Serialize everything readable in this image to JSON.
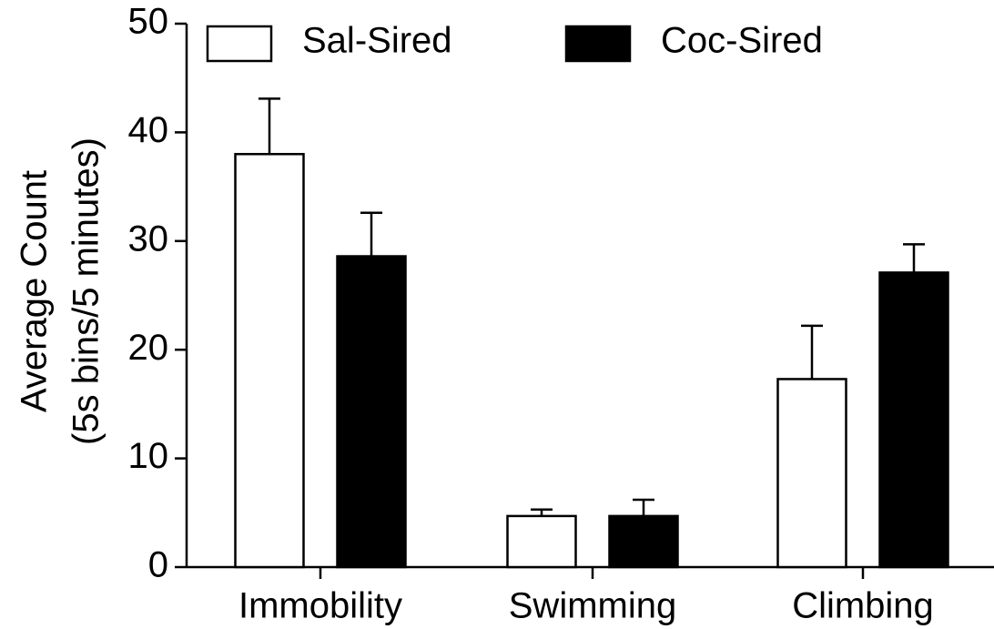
{
  "chart_data": {
    "type": "bar",
    "ylabel": [
      "Average Count",
      "(5s bins/5 minutes)"
    ],
    "categories": [
      "Immobility",
      "Swimming",
      "Climbing"
    ],
    "series": [
      {
        "name": "Sal-Sired",
        "color": "#ffffff",
        "values": [
          38,
          4.7,
          17.3
        ],
        "errors": [
          5.1,
          0.6,
          4.9
        ]
      },
      {
        "name": "Coc-Sired",
        "color": "#000000",
        "values": [
          28.6,
          4.7,
          27.1
        ],
        "errors": [
          4.0,
          1.5,
          2.6
        ]
      }
    ],
    "ylim": [
      0,
      50
    ],
    "yticks": [
      0,
      10,
      20,
      30,
      40,
      50
    ],
    "legend": "top"
  }
}
